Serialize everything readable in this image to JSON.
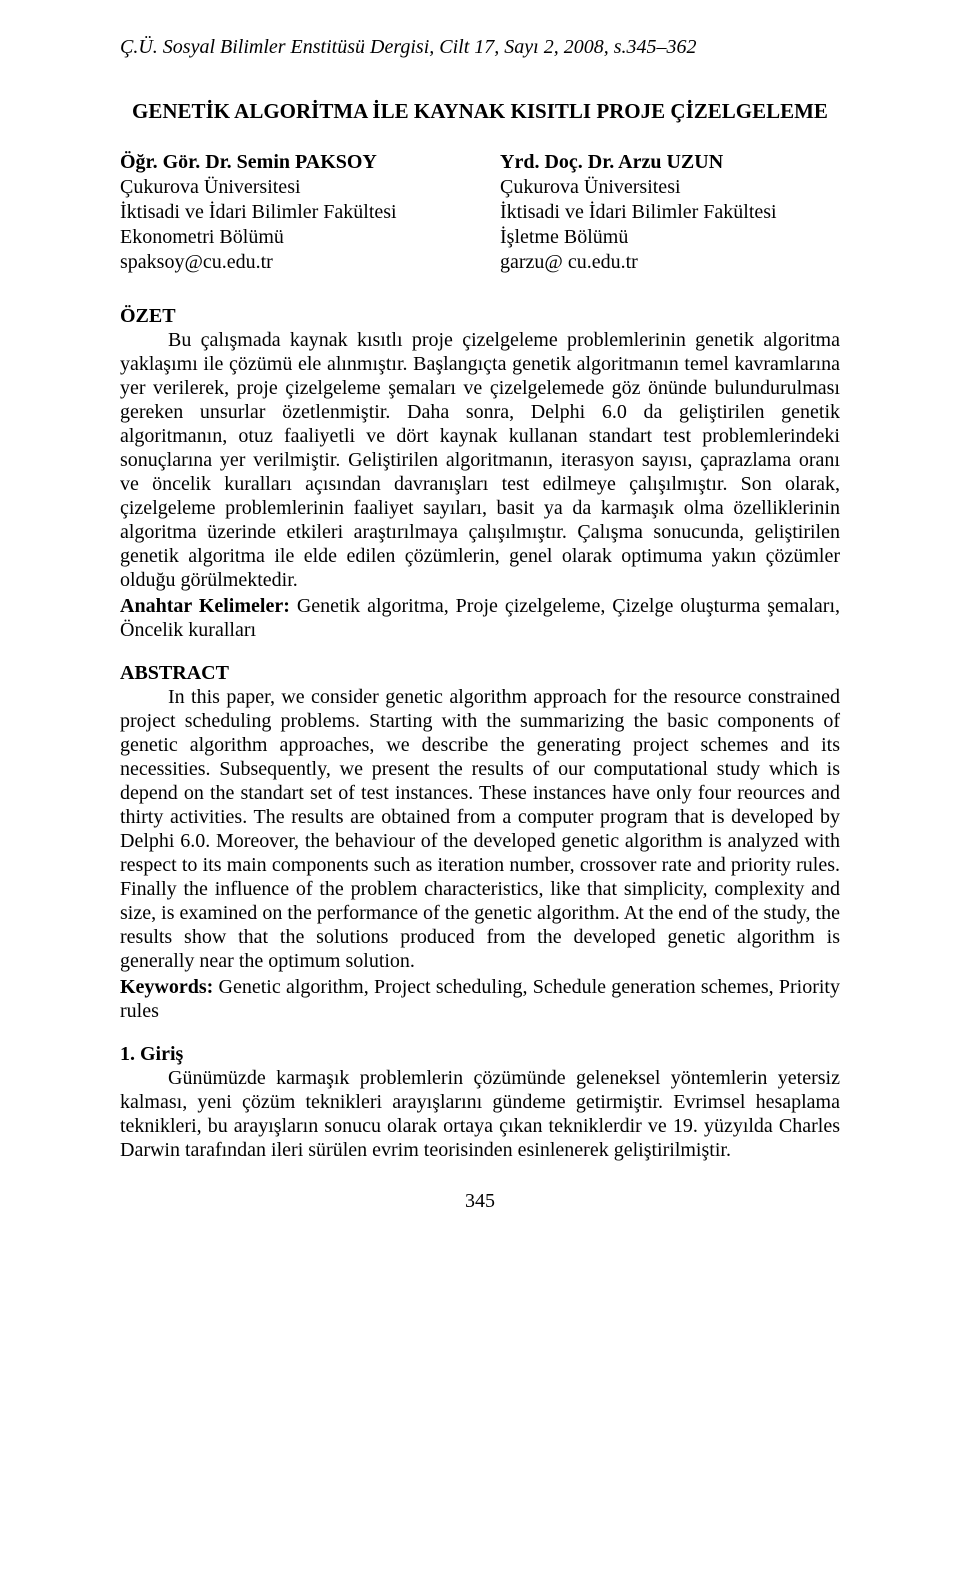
{
  "journal_header": "Ç.Ü. Sosyal Bilimler Enstitüsü Dergisi, Cilt 17, Sayı 2, 2008, s.345–362",
  "title": "GENETİK ALGORİTMA İLE KAYNAK KISITLI PROJE ÇİZELGELEME",
  "author_left": {
    "name": "Öğr. Gör. Dr. Semin PAKSOY",
    "line1": "Çukurova Üniversitesi",
    "line2": "İktisadi ve İdari Bilimler Fakültesi",
    "line3": "Ekonometri Bölümü",
    "email": "spaksoy@cu.edu.tr"
  },
  "author_right": {
    "name": "Yrd. Doç. Dr. Arzu UZUN",
    "line1": "Çukurova Üniversitesi",
    "line2": "İktisadi ve İdari Bilimler Fakültesi",
    "line3": "İşletme Bölümü",
    "email": "garzu@ cu.edu.tr"
  },
  "ozet": {
    "heading": "ÖZET",
    "body": "Bu çalışmada kaynak kısıtlı proje çizelgeleme problemlerinin genetik algoritma yaklaşımı ile çözümü ele alınmıştır. Başlangıçta genetik algoritmanın temel kavramlarına yer verilerek, proje çizelgeleme şemaları ve çizelgelemede göz önünde bulundurulması gereken unsurlar özetlenmiştir. Daha sonra, Delphi 6.0 da geliştirilen genetik algoritmanın, otuz faaliyetli ve dört kaynak kullanan standart test problemlerindeki sonuçlarına yer verilmiştir. Geliştirilen algoritmanın, iterasyon sayısı, çaprazlama oranı ve öncelik kuralları açısından davranışları test edilmeye çalışılmıştır. Son olarak, çizelgeleme problemlerinin faaliyet sayıları, basit ya da karmaşık olma özelliklerinin algoritma üzerinde etkileri araştırılmaya çalışılmıştır. Çalışma sonucunda, geliştirilen genetik algoritma ile elde edilen çözümlerin,  genel olarak  optimuma yakın çözümler olduğu görülmektedir.",
    "keywords_label": "Anahtar Kelimeler:",
    "keywords_text": " Genetik algoritma, Proje çizelgeleme, Çizelge oluşturma şemaları, Öncelik kuralları"
  },
  "abstract": {
    "heading": "ABSTRACT",
    "body": "In this paper, we consider genetic algorithm approach for the resource constrained project scheduling problems. Starting with the summarizing the basic components of genetic algorithm approaches, we describe the generating project schemes and its necessities. Subsequently, we present the results of our computational study which is depend on the standart set of test instances. These instances have only four reources and thirty activities. The results are obtained from a computer program that is developed by Delphi 6.0. Moreover, the behaviour of the developed genetic algorithm is analyzed with respect to its main components such as iteration number, crossover rate and priority rules. Finally the influence of the problem characteristics, like that simplicity, complexity and size,  is examined on the performance of the genetic algorithm. At the end of the study, the results show that the solutions produced from the developed genetic algorithm is generally near the optimum solution.",
    "keywords_label": "Keywords:",
    "keywords_text": " Genetic algorithm,  Project scheduling, Schedule generation schemes, Priority rules"
  },
  "section1": {
    "heading": "1. Giriş",
    "body": "Günümüzde karmaşık problemlerin çözümünde geleneksel yöntemlerin yetersiz kalması, yeni çözüm teknikleri arayışlarını gündeme getirmiştir. Evrimsel hesaplama teknikleri, bu arayışların sonucu olarak ortaya çıkan tekniklerdir ve 19. yüzyılda Charles Darwin tarafından ileri sürülen evrim teorisinden esinlenerek geliştirilmiştir."
  },
  "page_number": "345"
}
